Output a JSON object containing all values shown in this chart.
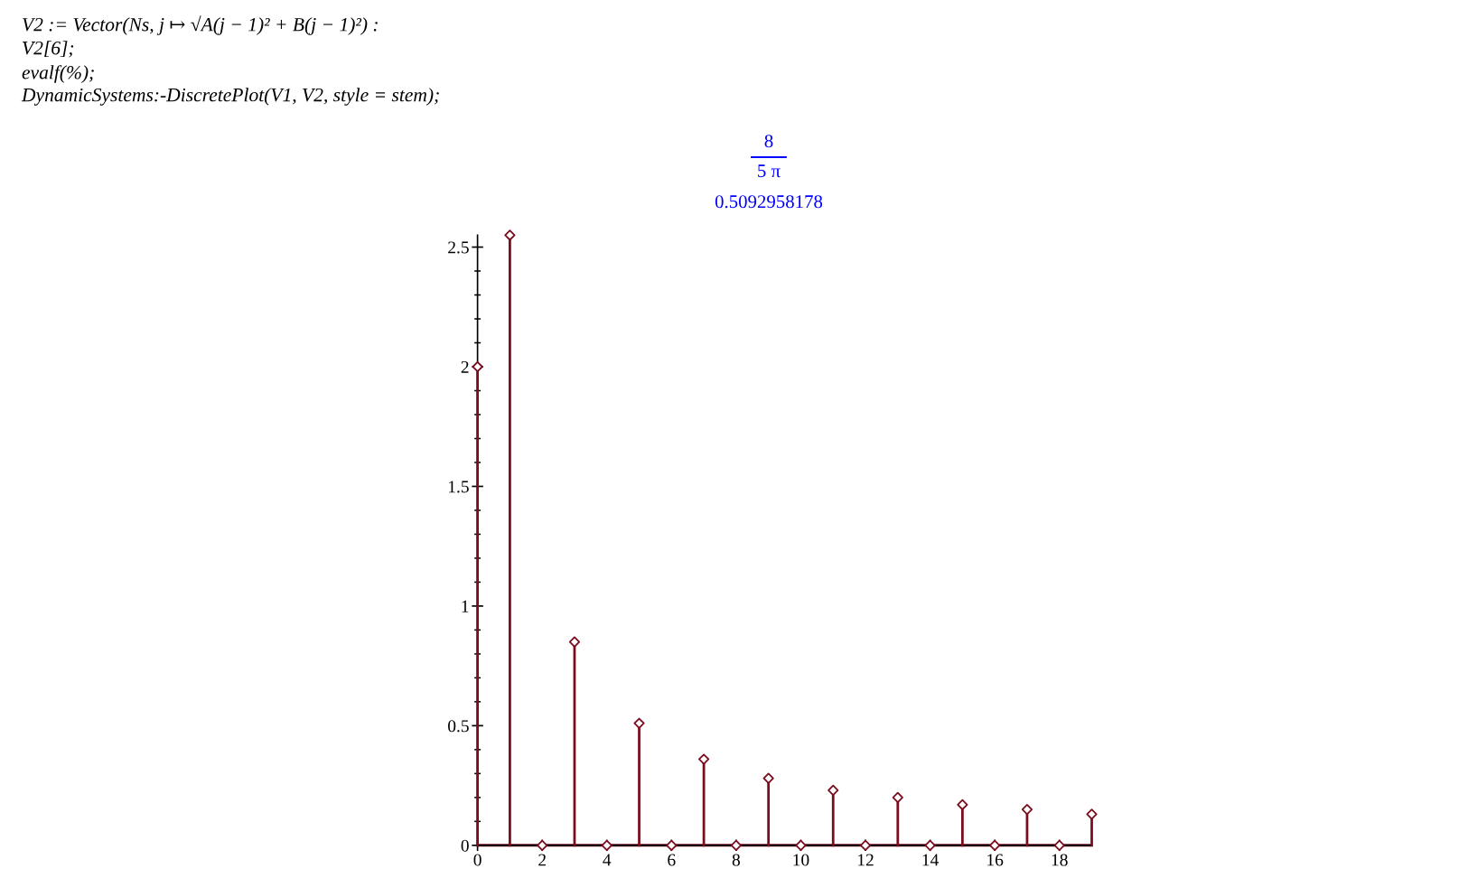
{
  "chart_data": {
    "type": "lollipop",
    "annotations": [
      "V2 := Vector(Ns, j ↦ √A(j − 1)² + B(j − 1)²) :",
      "V2[6];",
      "evalf(%);",
      "DynamicSystems:-DiscretePlot(V1, V2, style = stem);",
      "8",
      "5 π",
      "0.5092958178"
    ],
    "x": [
      0,
      1,
      2,
      3,
      4,
      5,
      6,
      7,
      8,
      9,
      10,
      11,
      12,
      13,
      14,
      15,
      16,
      17,
      18,
      19
    ],
    "values": [
      2,
      2.55,
      0,
      0.85,
      0,
      0.51,
      0,
      0.36,
      0,
      0.28,
      0,
      0.23,
      0,
      0.2,
      0,
      0.17,
      0,
      0.15,
      0,
      0.13
    ],
    "color": "#7a0c1e",
    "marker": "diamond",
    "xlim": [
      0,
      19
    ],
    "ylim": [
      0,
      2.55
    ],
    "xticks": [
      0,
      2,
      4,
      6,
      8,
      10,
      12,
      14,
      16,
      18
    ],
    "yticks": [
      0,
      {
        "value": 0.1,
        "label": null
      },
      {
        "value": 0.2,
        "label": null
      },
      {
        "value": 0.3,
        "label": null
      },
      {
        "value": 0.4,
        "label": null
      },
      0.5,
      {
        "value": 0.6,
        "label": null
      },
      {
        "value": 0.7,
        "label": null
      },
      {
        "value": 0.8,
        "label": null
      },
      {
        "value": 0.9,
        "label": null
      },
      1,
      {
        "value": 1.1,
        "label": null
      },
      {
        "value": 1.2,
        "label": null
      },
      {
        "value": 1.3,
        "label": null
      },
      {
        "value": 1.4,
        "label": null
      },
      1.5,
      {
        "value": 1.6,
        "label": null
      },
      {
        "value": 1.7,
        "label": null
      },
      {
        "value": 1.8,
        "label": null
      },
      {
        "value": 1.9,
        "label": null
      },
      2,
      {
        "value": 2.1,
        "label": null
      },
      {
        "value": 2.2,
        "label": null
      },
      {
        "value": 2.3,
        "label": null
      },
      {
        "value": 2.4,
        "label": null
      },
      2.5
    ]
  }
}
